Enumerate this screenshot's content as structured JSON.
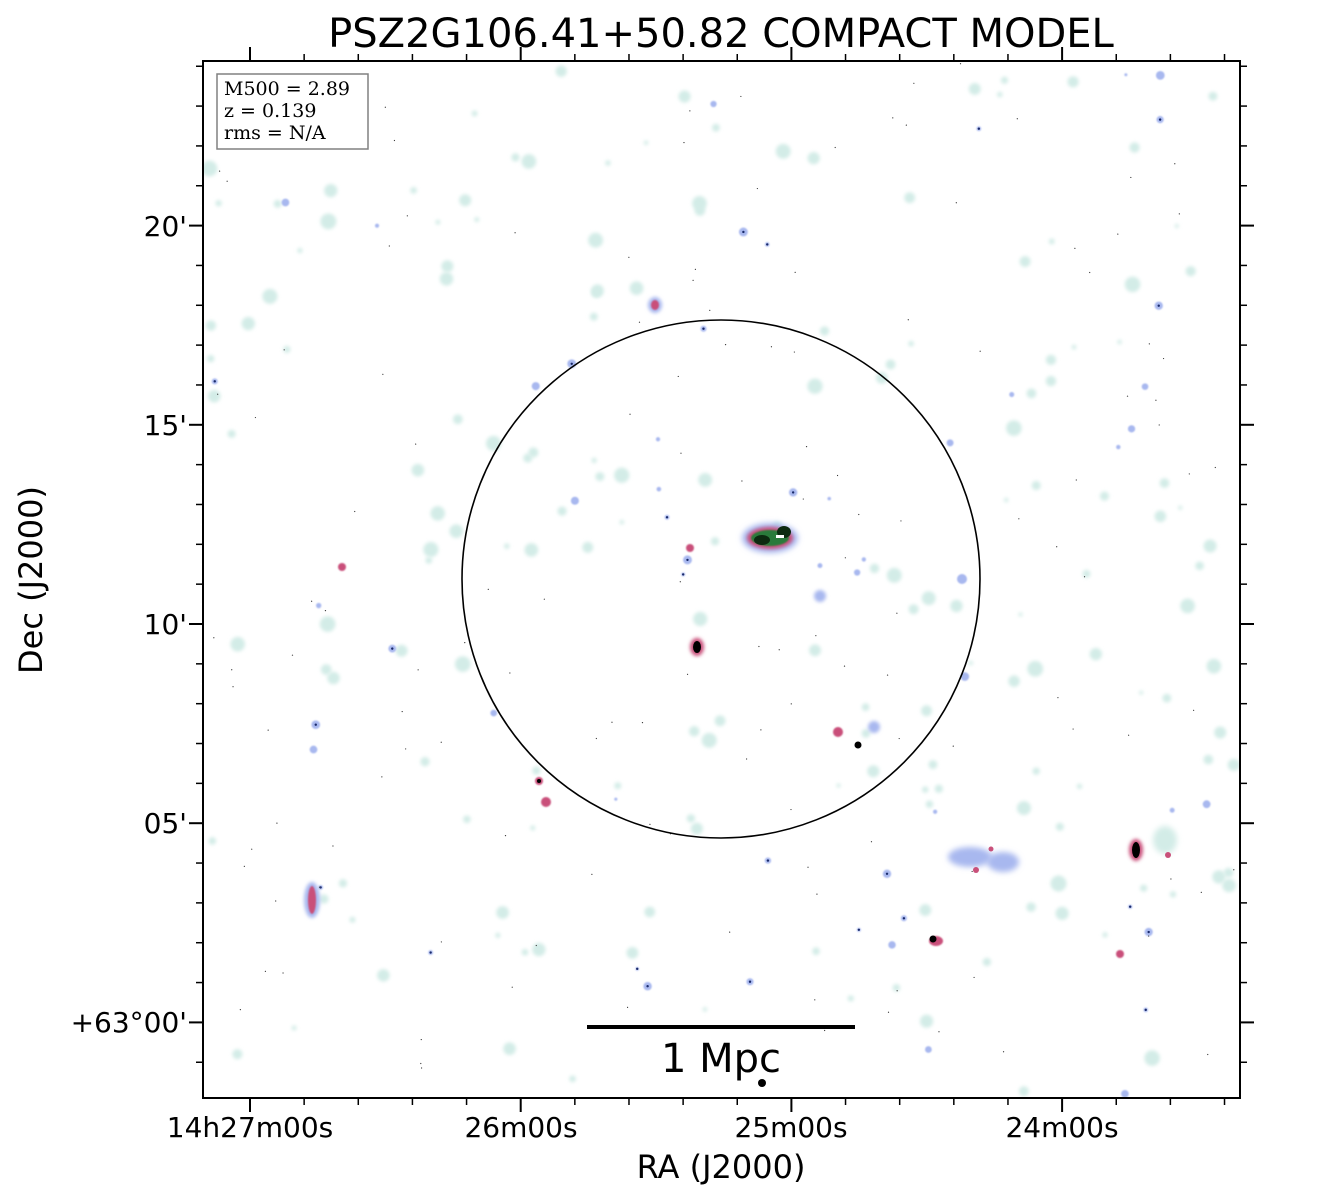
{
  "title": "PSZ2G106.41+50.82 COMPACT MODEL",
  "info_box": {
    "lines": [
      "M500 = 2.89",
      "z = 0.139",
      "rms = N/A"
    ]
  },
  "scale_bar": {
    "label": "1 Mpc"
  },
  "axes": {
    "xlabel": "RA (J2000)",
    "ylabel": "Dec (J2000)",
    "x_ticks": [
      "14h27m00s",
      "26m00s",
      "25m00s",
      "24m00s"
    ],
    "y_ticks": [
      "20'",
      "15'",
      "10'",
      "05'",
      "+63°00'"
    ]
  },
  "colors": {
    "faint_source": "#d3ece7",
    "mid_source": "#a8b8ef",
    "bright_source": "#c9507a",
    "core": "#000000",
    "green_core": "#2a7a3a"
  }
}
